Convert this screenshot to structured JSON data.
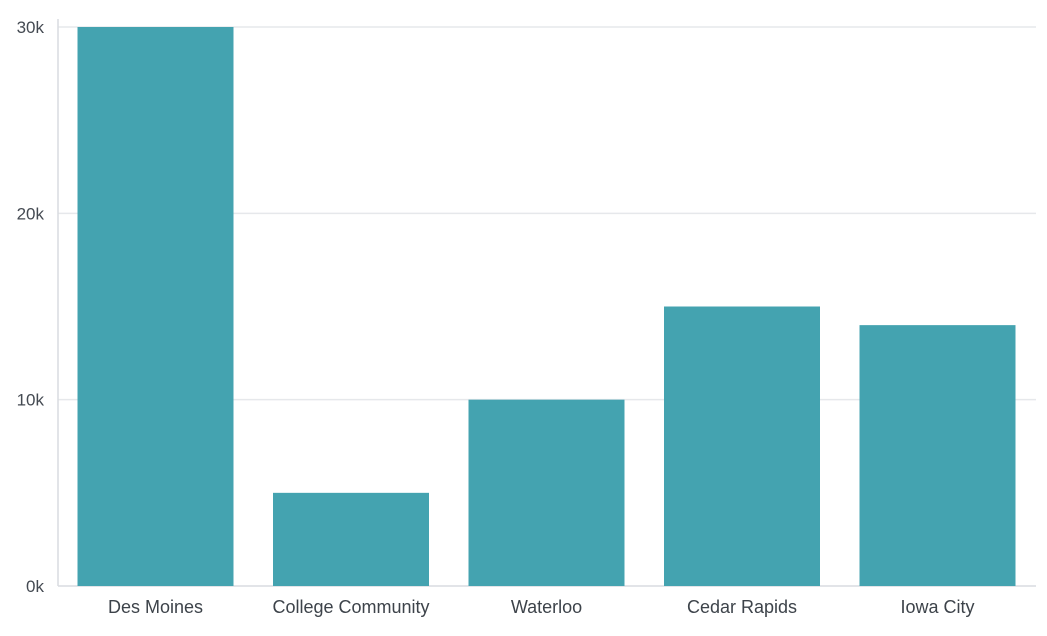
{
  "chart_data": {
    "type": "bar",
    "categories": [
      "Des Moines",
      "College Community",
      "Waterloo",
      "Cedar Rapids",
      "Iowa City"
    ],
    "values": [
      30000,
      5000,
      10000,
      15000,
      14000
    ],
    "ylim": [
      0,
      30000
    ],
    "yticks": [
      0,
      10000,
      20000,
      30000
    ],
    "ytick_labels": [
      "0k",
      "10k",
      "20k",
      "30k"
    ],
    "title": "",
    "xlabel": "",
    "ylabel": "",
    "grid": "horizontal",
    "bar_color": "#44a3b0"
  }
}
